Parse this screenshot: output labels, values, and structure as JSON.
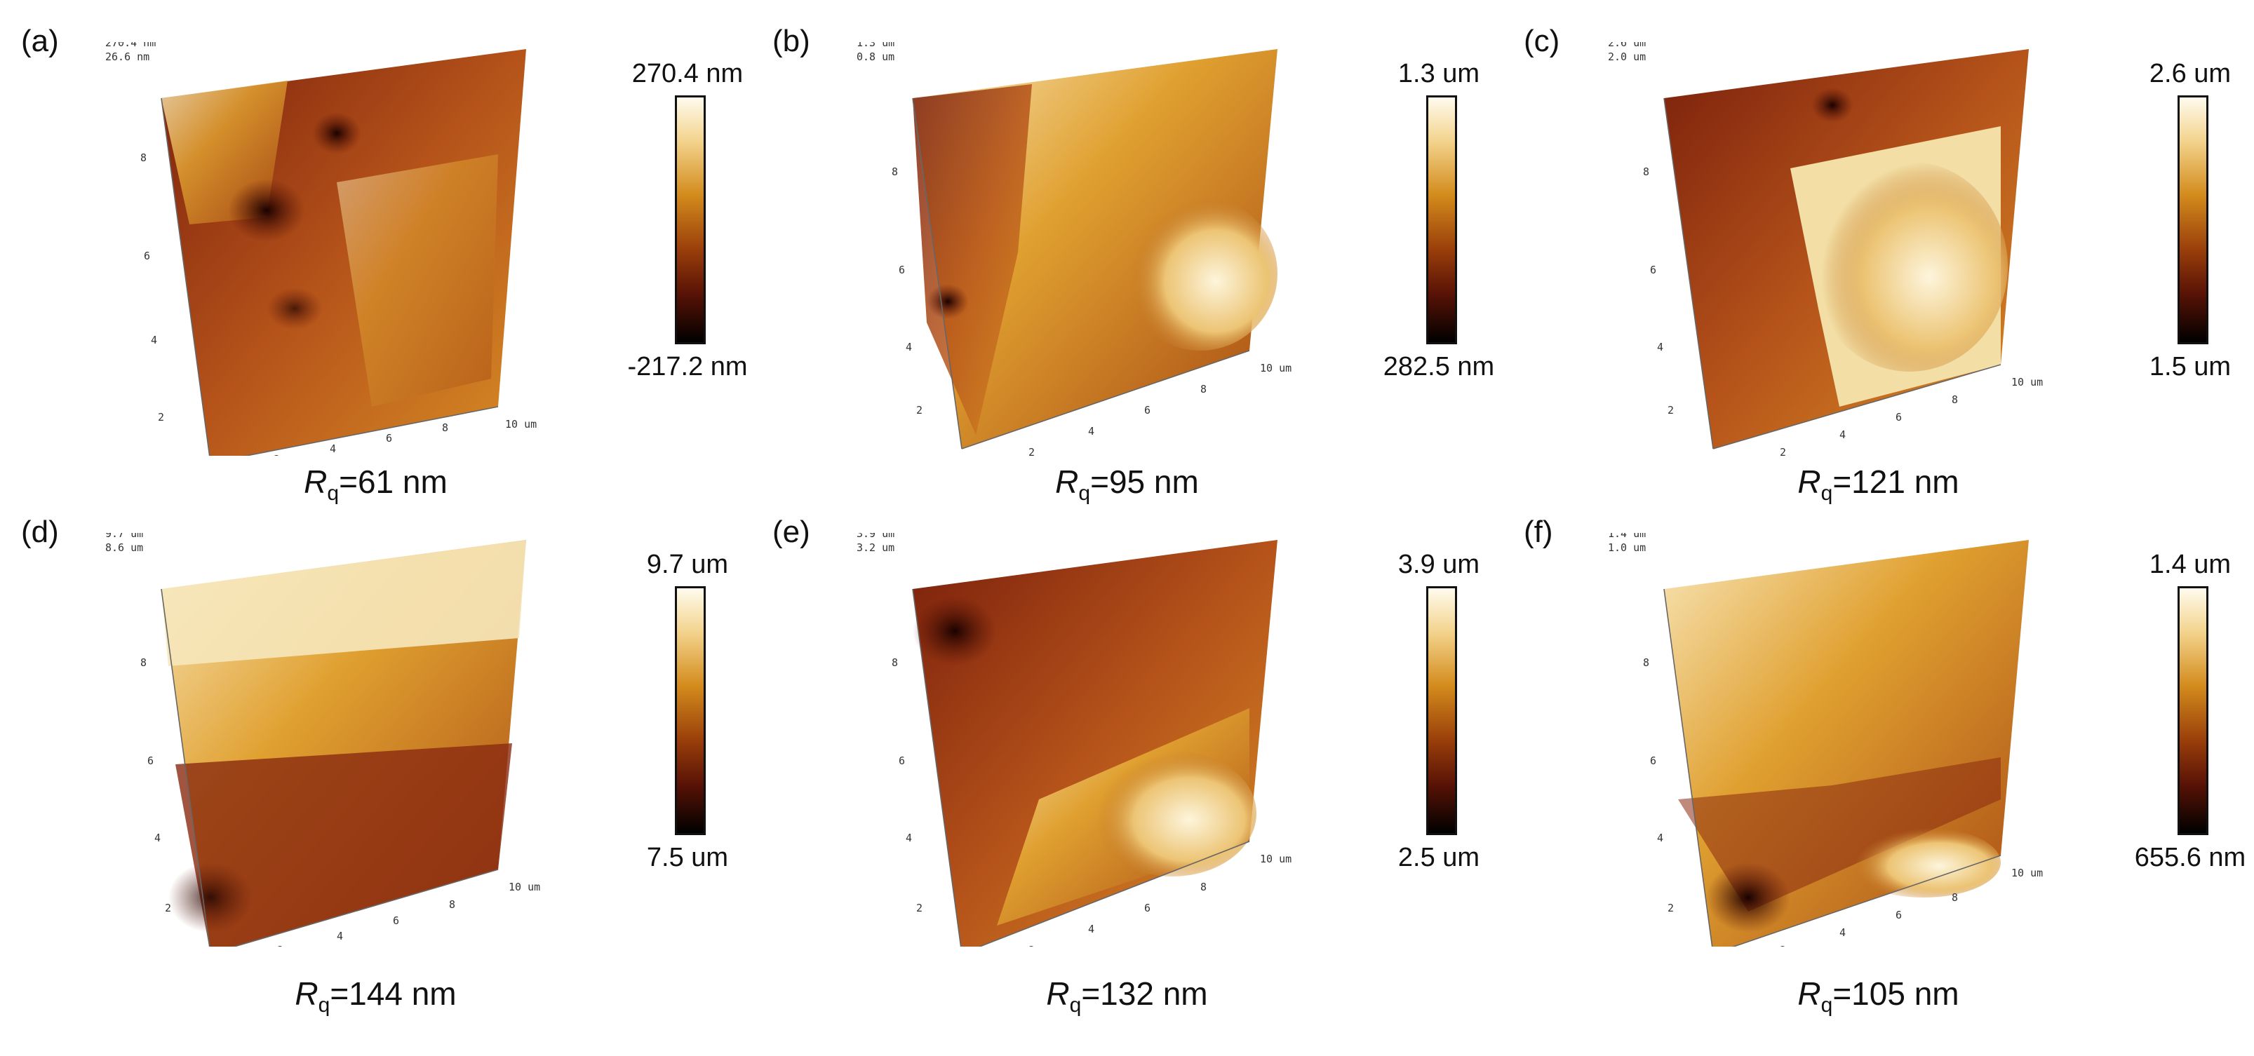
{
  "colors": {
    "highlight": "#fffbee",
    "gold": "#d38b1c",
    "rust": "#9a3f0a",
    "shadow": "#000000"
  },
  "panels": [
    {
      "label": "(a)",
      "zmax_tick": "270.4 nm",
      "zmin_tick": "26.6 nm",
      "cb_max": "270.4 nm",
      "cb_min": "-217.2 nm",
      "rq_symbol": "R",
      "rq_sub": "q",
      "rq_value": "=61 nm"
    },
    {
      "label": "(b)",
      "zmax_tick": "1.3 um",
      "zmin_tick": "0.8 um",
      "cb_max": "1.3 um",
      "cb_min": "282.5 nm",
      "rq_symbol": "R",
      "rq_sub": "q",
      "rq_value": "=95 nm"
    },
    {
      "label": "(c)",
      "zmax_tick": "2.6 um",
      "zmin_tick": "2.0 um",
      "cb_max": "2.6 um",
      "cb_min": "1.5 um",
      "rq_symbol": "R",
      "rq_sub": "q",
      "rq_value": "=121 nm"
    },
    {
      "label": "(d)",
      "zmax_tick": "9.7 um",
      "zmin_tick": "8.6 um",
      "cb_max": "9.7 um",
      "cb_min": "7.5 um",
      "rq_symbol": "R",
      "rq_sub": "q",
      "rq_value": "=144 nm"
    },
    {
      "label": "(e)",
      "zmax_tick": "3.9 um",
      "zmin_tick": "3.2 um",
      "cb_max": "3.9 um",
      "cb_min": "2.5 um",
      "rq_symbol": "R",
      "rq_sub": "q",
      "rq_value": "=132 nm"
    },
    {
      "label": "(f)",
      "zmax_tick": "1.4 um",
      "zmin_tick": "1.0 um",
      "cb_max": "1.4 um",
      "cb_min": "655.6 nm",
      "rq_symbol": "R",
      "rq_sub": "q",
      "rq_value": "=105 nm"
    }
  ],
  "axis": {
    "tick_2": "2",
    "tick_4": "4",
    "tick_6": "6",
    "tick_8": "8",
    "tick_10": "10",
    "tick_10um": "10 um"
  }
}
